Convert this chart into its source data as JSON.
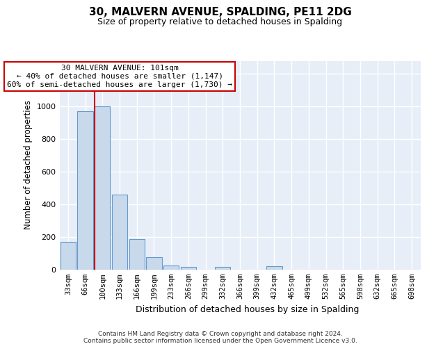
{
  "title1": "30, MALVERN AVENUE, SPALDING, PE11 2DG",
  "title2": "Size of property relative to detached houses in Spalding",
  "xlabel": "Distribution of detached houses by size in Spalding",
  "ylabel": "Number of detached properties",
  "categories": [
    "33sqm",
    "66sqm",
    "100sqm",
    "133sqm",
    "166sqm",
    "199sqm",
    "233sqm",
    "266sqm",
    "299sqm",
    "332sqm",
    "366sqm",
    "399sqm",
    "432sqm",
    "465sqm",
    "499sqm",
    "532sqm",
    "565sqm",
    "598sqm",
    "632sqm",
    "665sqm",
    "698sqm"
  ],
  "values": [
    170,
    970,
    1000,
    460,
    185,
    75,
    22,
    17,
    0,
    17,
    0,
    0,
    20,
    0,
    0,
    0,
    0,
    0,
    0,
    0,
    0
  ],
  "bar_color": "#c8d9ec",
  "bar_edgecolor": "#6699cc",
  "vline_color": "#cc0000",
  "annotation_line1": "30 MALVERN AVENUE: 101sqm",
  "annotation_line2": "← 40% of detached houses are smaller (1,147)",
  "annotation_line3": "60% of semi-detached houses are larger (1,730) →",
  "annotation_box_edgecolor": "#cc0000",
  "ylim": [
    0,
    1280
  ],
  "yticks": [
    0,
    200,
    400,
    600,
    800,
    1000,
    1200
  ],
  "background_color": "#e8eef8",
  "footer_text": "Contains HM Land Registry data © Crown copyright and database right 2024.\nContains public sector information licensed under the Open Government Licence v3.0."
}
